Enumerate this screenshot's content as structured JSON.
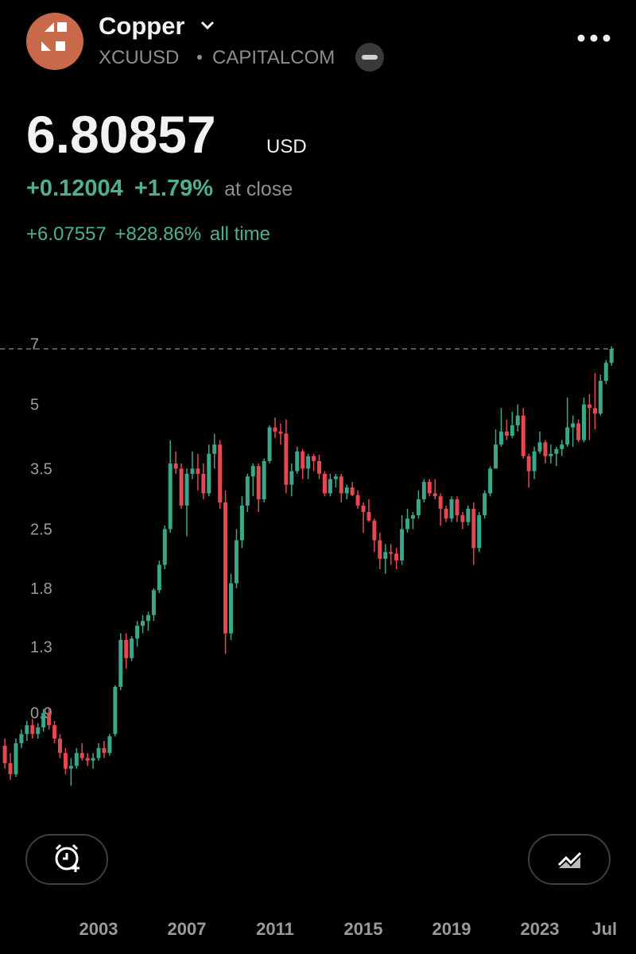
{
  "header": {
    "title": "Copper",
    "symbol": "XCUUSD",
    "exchange": "CAPITALCOM"
  },
  "quote": {
    "price": "6.80857",
    "currency": "USD",
    "change": "+0.12004",
    "change_percent": "+1.79%",
    "change_note": "at close",
    "all_time_change": "+6.07557",
    "all_time_percent": "+828.86%",
    "all_time_note": "all time"
  },
  "chart_data": {
    "type": "candlestick",
    "log_scale": true,
    "up_color": "#3aa68a",
    "down_color": "#e5484f",
    "ylim": [
      0.57,
      7.4
    ],
    "yticks": [
      7,
      5,
      3.5,
      2.5,
      1.8,
      1.3,
      0.9
    ],
    "xlim": [
      1998.53,
      2027.36
    ],
    "xticks": [
      2003,
      2007,
      2011,
      2015,
      2019,
      2023,
      {
        "value": 2026.5,
        "label": "Jul"
      }
    ],
    "current_price_line": 6.80857,
    "x": [
      1998.75,
      1999,
      1999.25,
      1999.5,
      1999.75,
      2000,
      2000.25,
      2000.5,
      2000.75,
      2001,
      2001.25,
      2001.5,
      2001.75,
      2002,
      2002.25,
      2002.5,
      2002.75,
      2003,
      2003.25,
      2003.5,
      2003.75,
      2004,
      2004.25,
      2004.5,
      2004.75,
      2005,
      2005.25,
      2005.5,
      2005.75,
      2006,
      2006.25,
      2006.5,
      2006.75,
      2007,
      2007.25,
      2007.5,
      2007.75,
      2008,
      2008.25,
      2008.5,
      2008.75,
      2009,
      2009.25,
      2009.5,
      2009.75,
      2010,
      2010.25,
      2010.5,
      2010.75,
      2011,
      2011.25,
      2011.5,
      2011.75,
      2012,
      2012.25,
      2012.5,
      2012.75,
      2013,
      2013.25,
      2013.5,
      2013.75,
      2014,
      2014.25,
      2014.5,
      2014.75,
      2015,
      2015.25,
      2015.5,
      2015.75,
      2016,
      2016.25,
      2016.5,
      2016.75,
      2017,
      2017.25,
      2017.5,
      2017.75,
      2018,
      2018.25,
      2018.5,
      2018.75,
      2019,
      2019.25,
      2019.5,
      2019.75,
      2020,
      2020.25,
      2020.5,
      2020.75,
      2021,
      2021.25,
      2021.5,
      2021.75,
      2022,
      2022.25,
      2022.5,
      2022.75,
      2023,
      2023.25,
      2023.5,
      2023.75,
      2024,
      2024.25,
      2024.5,
      2024.75,
      2025,
      2025.25,
      2025.5,
      2025.75,
      2026,
      2026.25
    ],
    "open": [
      0.75,
      0.68,
      0.64,
      0.76,
      0.8,
      0.84,
      0.8,
      0.83,
      0.9,
      0.84,
      0.78,
      0.72,
      0.66,
      0.67,
      0.72,
      0.7,
      0.69,
      0.7,
      0.74,
      0.72,
      0.8,
      1.04,
      1.35,
      1.22,
      1.36,
      1.46,
      1.5,
      1.55,
      1.78,
      2.05,
      2.5,
      3.6,
      3.5,
      2.85,
      3.4,
      3.5,
      3.4,
      3.05,
      3.8,
      4.0,
      2.9,
      1.4,
      1.85,
      2.35,
      2.85,
      3.35,
      3.55,
      2.95,
      3.65,
      4.4,
      4.3,
      4.25,
      3.2,
      3.45,
      3.85,
      3.5,
      3.75,
      3.65,
      3.4,
      3.05,
      3.3,
      3.35,
      3.05,
      3.15,
      3.02,
      2.85,
      2.75,
      2.62,
      2.35,
      2.12,
      2.2,
      2.18,
      2.1,
      2.5,
      2.65,
      2.7,
      2.95,
      3.25,
      3.05,
      3.0,
      2.8,
      2.65,
      2.95,
      2.7,
      2.6,
      2.8,
      2.25,
      2.7,
      3.05,
      3.5,
      4.0,
      4.3,
      4.2,
      4.45,
      4.7,
      3.75,
      3.45,
      3.85,
      4.05,
      3.75,
      3.8,
      3.9,
      4.0,
      4.4,
      4.5,
      4.1,
      5.0,
      4.9,
      4.75,
      5.7,
      6.3
    ],
    "high": [
      0.78,
      0.72,
      0.78,
      0.82,
      0.86,
      0.87,
      0.85,
      0.92,
      0.92,
      0.86,
      0.8,
      0.74,
      0.7,
      0.74,
      0.76,
      0.72,
      0.72,
      0.76,
      0.77,
      0.8,
      1.05,
      1.4,
      1.4,
      1.38,
      1.5,
      1.55,
      1.58,
      1.8,
      2.1,
      2.55,
      4.1,
      3.85,
      3.6,
      3.5,
      3.85,
      3.8,
      3.6,
      4.0,
      4.25,
      4.1,
      3.1,
      1.95,
      2.5,
      3.0,
      3.4,
      3.6,
      3.6,
      3.7,
      4.45,
      4.65,
      4.5,
      4.6,
      3.6,
      3.95,
      3.9,
      3.8,
      3.8,
      3.78,
      3.45,
      3.4,
      3.4,
      3.4,
      3.2,
      3.25,
      3.1,
      2.9,
      2.95,
      2.65,
      2.45,
      2.3,
      2.3,
      2.25,
      2.7,
      2.8,
      2.75,
      3.1,
      3.3,
      3.3,
      3.3,
      3.05,
      2.85,
      3.0,
      3.0,
      2.75,
      2.85,
      2.9,
      2.75,
      3.1,
      3.55,
      4.35,
      4.9,
      4.6,
      4.8,
      5.0,
      4.9,
      3.8,
      3.95,
      4.3,
      4.1,
      4.0,
      3.95,
      4.1,
      5.2,
      4.7,
      4.6,
      5.2,
      5.3,
      5.95,
      5.9,
      6.4,
      6.9
    ],
    "low": [
      0.66,
      0.62,
      0.63,
      0.74,
      0.77,
      0.78,
      0.78,
      0.81,
      0.82,
      0.76,
      0.7,
      0.64,
      0.6,
      0.66,
      0.69,
      0.67,
      0.66,
      0.69,
      0.7,
      0.71,
      0.79,
      1.02,
      1.15,
      1.2,
      1.3,
      1.4,
      1.42,
      1.5,
      1.75,
      2.0,
      2.45,
      3.4,
      2.8,
      2.4,
      3.3,
      3.1,
      2.95,
      3.0,
      3.5,
      2.8,
      1.25,
      1.35,
      1.8,
      2.25,
      2.75,
      3.0,
      2.75,
      2.9,
      3.6,
      4.15,
      4.0,
      3.05,
      3.0,
      3.4,
      3.3,
      3.3,
      3.45,
      3.3,
      3.0,
      3.0,
      3.15,
      2.9,
      2.95,
      3.0,
      2.8,
      2.45,
      2.6,
      2.2,
      2.0,
      1.95,
      2.05,
      2.0,
      2.05,
      2.45,
      2.5,
      2.65,
      2.9,
      3.0,
      2.95,
      2.55,
      2.6,
      2.6,
      2.6,
      2.5,
      2.55,
      2.05,
      2.2,
      2.65,
      3.0,
      3.5,
      3.95,
      4.1,
      4.15,
      4.3,
      3.7,
      3.15,
      3.3,
      3.8,
      3.6,
      3.6,
      3.55,
      3.75,
      3.95,
      3.95,
      4.05,
      4.05,
      4.1,
      4.35,
      4.7,
      5.6,
      6.2
    ],
    "close": [
      0.68,
      0.64,
      0.76,
      0.8,
      0.84,
      0.8,
      0.83,
      0.9,
      0.84,
      0.78,
      0.72,
      0.66,
      0.67,
      0.72,
      0.7,
      0.69,
      0.7,
      0.74,
      0.72,
      0.79,
      1.04,
      1.35,
      1.22,
      1.36,
      1.46,
      1.5,
      1.55,
      1.78,
      2.05,
      2.5,
      3.6,
      3.5,
      2.85,
      3.4,
      3.5,
      3.4,
      3.05,
      3.8,
      4.0,
      2.9,
      1.4,
      1.85,
      2.35,
      2.85,
      3.35,
      3.55,
      2.95,
      3.65,
      4.4,
      4.3,
      4.25,
      3.2,
      3.45,
      3.85,
      3.5,
      3.75,
      3.65,
      3.4,
      3.05,
      3.3,
      3.35,
      3.05,
      3.15,
      3.02,
      2.85,
      2.75,
      2.62,
      2.35,
      2.12,
      2.2,
      2.18,
      2.1,
      2.5,
      2.65,
      2.7,
      2.95,
      3.25,
      3.05,
      3.0,
      2.8,
      2.65,
      2.95,
      2.7,
      2.6,
      2.8,
      2.25,
      2.7,
      3.05,
      3.5,
      4.0,
      4.3,
      4.2,
      4.45,
      4.7,
      3.75,
      3.45,
      3.85,
      4.05,
      3.75,
      3.8,
      3.9,
      4.0,
      4.4,
      4.5,
      4.1,
      5.0,
      4.9,
      4.75,
      5.7,
      6.3,
      6.80857
    ]
  }
}
